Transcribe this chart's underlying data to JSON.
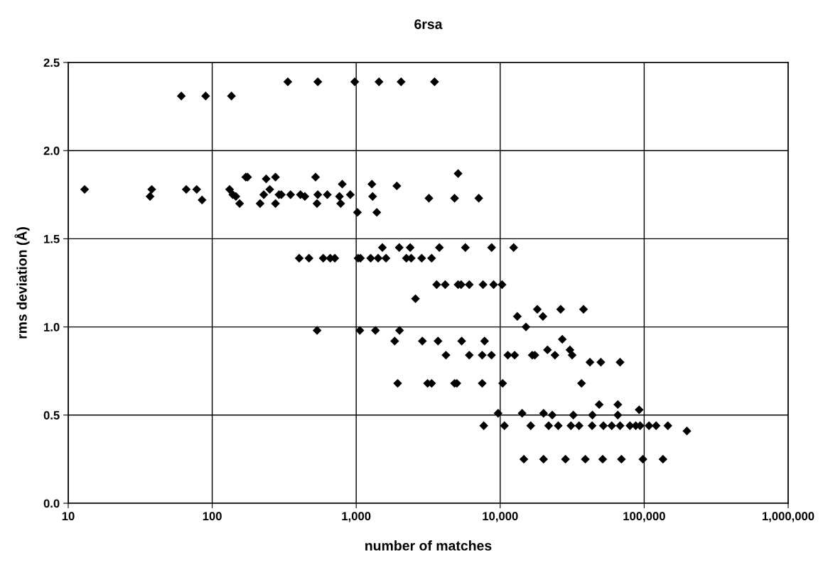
{
  "chart_data": {
    "type": "scatter",
    "title": "6rsa",
    "xlabel": "number of matches",
    "ylabel": "rms deviation (Å)",
    "log": "x",
    "grid": true,
    "marker": "diamond",
    "legend": false,
    "xlim": [
      10,
      1000000
    ],
    "ylim": [
      0,
      2.5
    ],
    "xticks": [
      10,
      100,
      {
        "value": 1000,
        "label": "1,000"
      },
      {
        "value": 10000,
        "label": "10,000"
      },
      {
        "value": 100000,
        "label": "100,000"
      },
      {
        "value": 1000000,
        "label": "1,000,000"
      }
    ],
    "yticks": [
      {
        "value": 0,
        "label": "0.0"
      },
      0.5,
      {
        "value": 1,
        "label": "1.0"
      },
      1.5,
      {
        "value": 2,
        "label": "2.0"
      },
      2.5
    ],
    "series": [
      {
        "color": "#000000",
        "x": [
          61,
          90,
          136,
          335,
          541,
          977,
          1440,
          2050,
          3500,
          13,
          38,
          37,
          66,
          78,
          85,
          132,
          139,
          146,
          155,
          171,
          176,
          215,
          228,
          237,
          251,
          275,
          275,
          291,
          302,
          350,
          410,
          440,
          522,
          541,
          534,
          630,
          765,
          780,
          800,
          910,
          1020,
          5100,
          1285,
          1915,
          1300,
          3200,
          4820,
          7100,
          1390,
          1520,
          1990,
          2370,
          3780,
          5730,
          8720,
          12400,
          402,
          470,
          590,
          660,
          710,
          1030,
          1070,
          1260,
          1420,
          1610,
          2230,
          2410,
          2850,
          3340,
          3620,
          4150,
          5100,
          5350,
          6100,
          7600,
          9000,
          10300,
          2580,
          18100,
          26300,
          37900,
          13150,
          19800,
          15100,
          535,
          1060,
          1360,
          2000,
          1850,
          2880,
          3700,
          5400,
          7790,
          4200,
          6100,
          7500,
          8700,
          11300,
          12600,
          16700,
          17400,
          21300,
          24000,
          27000,
          30500,
          31600,
          42000,
          50000,
          68000,
          1940,
          3130,
          3340,
          4820,
          5000,
          7500,
          10400,
          36700,
          48700,
          65600,
          92300,
          9670,
          14200,
          20000,
          23000,
          32200,
          43700,
          65600,
          7690,
          10700,
          16300,
          21700,
          25300,
          31000,
          35300,
          43500,
          52100,
          59500,
          68000,
          79600,
          87400,
          93700,
          108000,
          121000,
          146000,
          198000,
          14600,
          20000,
          28400,
          39000,
          51500,
          69500,
          98000,
          135000
        ],
        "values": [
          2.31,
          2.31,
          2.31,
          2.39,
          2.39,
          2.39,
          2.39,
          2.39,
          2.39,
          1.78,
          1.78,
          1.74,
          1.78,
          1.78,
          1.72,
          1.78,
          1.75,
          1.74,
          1.7,
          1.85,
          1.85,
          1.7,
          1.75,
          1.84,
          1.78,
          1.85,
          1.7,
          1.75,
          1.75,
          1.75,
          1.75,
          1.74,
          1.85,
          1.75,
          1.7,
          1.75,
          1.74,
          1.7,
          1.81,
          1.75,
          1.65,
          1.87,
          1.81,
          1.8,
          1.74,
          1.73,
          1.73,
          1.73,
          1.65,
          1.45,
          1.45,
          1.45,
          1.45,
          1.45,
          1.45,
          1.45,
          1.39,
          1.39,
          1.39,
          1.39,
          1.39,
          1.39,
          1.39,
          1.39,
          1.39,
          1.39,
          1.39,
          1.39,
          1.39,
          1.39,
          1.24,
          1.24,
          1.24,
          1.24,
          1.24,
          1.24,
          1.24,
          1.24,
          1.16,
          1.1,
          1.1,
          1.1,
          1.06,
          1.06,
          1.0,
          0.98,
          0.98,
          0.98,
          0.98,
          0.92,
          0.92,
          0.92,
          0.92,
          0.92,
          0.84,
          0.84,
          0.84,
          0.84,
          0.84,
          0.84,
          0.84,
          0.84,
          0.87,
          0.84,
          0.93,
          0.87,
          0.84,
          0.8,
          0.8,
          0.8,
          0.68,
          0.68,
          0.68,
          0.68,
          0.68,
          0.68,
          0.68,
          0.68,
          0.56,
          0.56,
          0.53,
          0.51,
          0.51,
          0.51,
          0.5,
          0.5,
          0.5,
          0.5,
          0.44,
          0.44,
          0.44,
          0.44,
          0.44,
          0.44,
          0.44,
          0.44,
          0.44,
          0.44,
          0.44,
          0.44,
          0.44,
          0.44,
          0.44,
          0.44,
          0.44,
          0.41,
          0.25,
          0.25,
          0.25,
          0.25,
          0.25,
          0.25,
          0.25,
          0.25
        ]
      }
    ]
  }
}
